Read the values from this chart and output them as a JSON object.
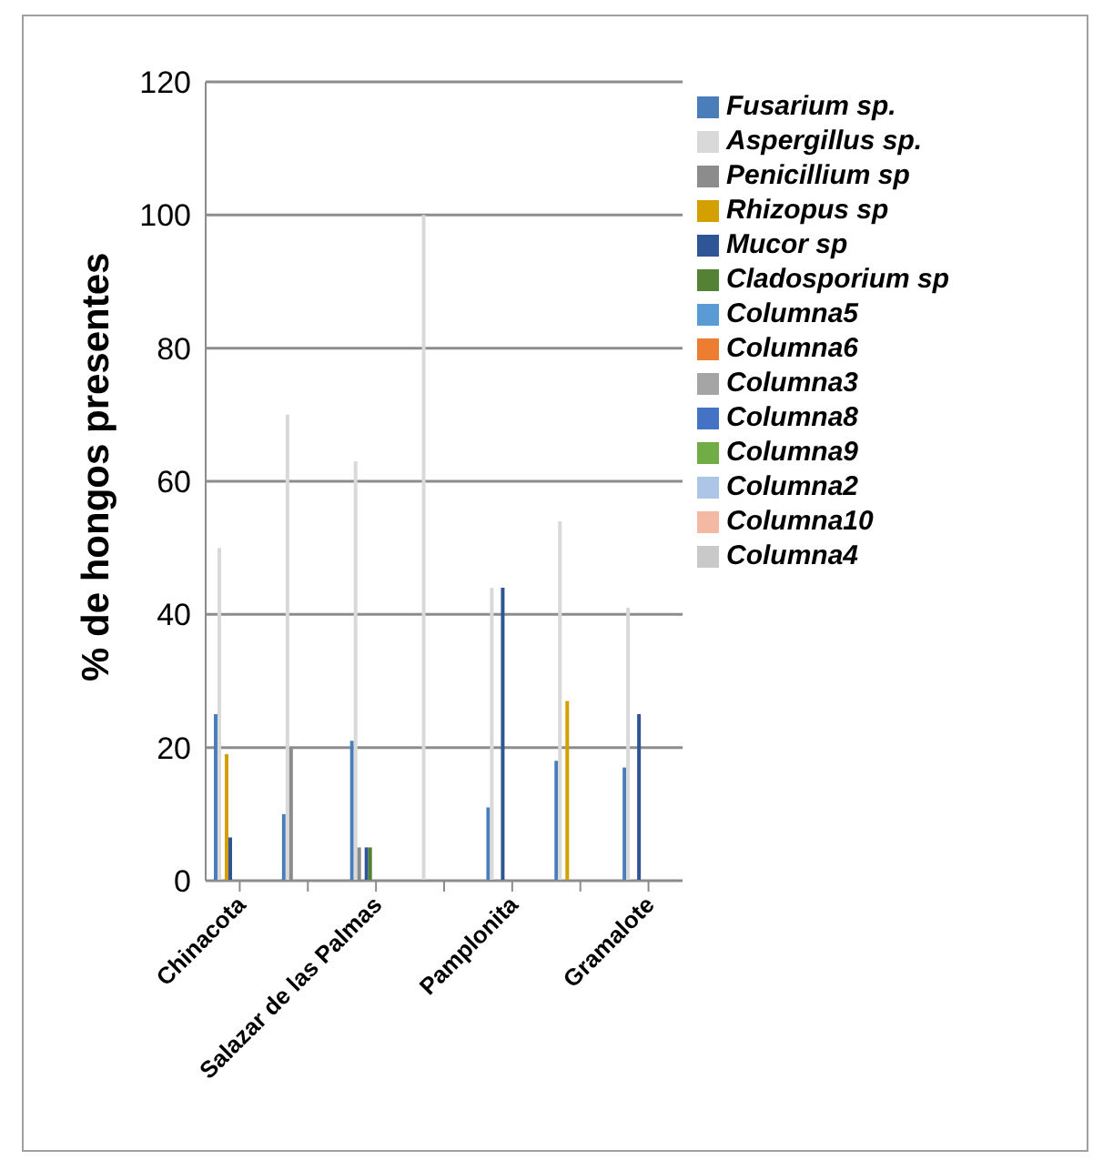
{
  "chart_data": {
    "type": "bar",
    "ylabel": "% de hongos presentes",
    "categories": [
      "Chinacota",
      null,
      "Salazar de las Palmas",
      null,
      "Pamplonita",
      null,
      "Gramalote"
    ],
    "series": [
      {
        "name": "Fusarium sp.",
        "color": "#4a7ebb",
        "values": [
          25,
          10,
          21,
          null,
          11,
          18,
          17
        ]
      },
      {
        "name": "Aspergillus sp.",
        "color": "#d9d9d9",
        "values": [
          50,
          70,
          63,
          100,
          44,
          54,
          41
        ]
      },
      {
        "name": "Penicillium sp",
        "color": "#8c8c8c",
        "values": [
          null,
          20,
          5,
          null,
          null,
          null,
          null
        ]
      },
      {
        "name": "Rhizopus sp",
        "color": "#d4a000",
        "values": [
          19,
          null,
          null,
          null,
          null,
          27,
          null
        ]
      },
      {
        "name": "Mucor sp",
        "color": "#2f5597",
        "values": [
          6.5,
          null,
          5,
          null,
          44,
          null,
          25
        ]
      },
      {
        "name": "Cladosporium sp",
        "color": "#548235",
        "values": [
          null,
          null,
          5,
          null,
          null,
          null,
          null
        ]
      },
      {
        "name": "Columna5",
        "color": "#5b9bd5",
        "values": [
          null,
          null,
          null,
          null,
          null,
          null,
          null
        ]
      },
      {
        "name": "Columna6",
        "color": "#ed7d31",
        "values": [
          null,
          null,
          null,
          null,
          null,
          null,
          null
        ]
      },
      {
        "name": "Columna3",
        "color": "#a5a5a5",
        "values": [
          null,
          null,
          null,
          null,
          null,
          null,
          null
        ]
      },
      {
        "name": "Columna8",
        "color": "#4472c4",
        "values": [
          null,
          null,
          null,
          null,
          null,
          null,
          null
        ]
      },
      {
        "name": "Columna9",
        "color": "#70ad47",
        "values": [
          null,
          null,
          null,
          null,
          null,
          null,
          null
        ]
      },
      {
        "name": "Columna2",
        "color": "#adc5e7",
        "values": [
          null,
          null,
          null,
          null,
          null,
          null,
          null
        ]
      },
      {
        "name": "Columna10",
        "color": "#f4b9a3",
        "values": [
          null,
          null,
          null,
          null,
          null,
          null,
          null
        ]
      },
      {
        "name": "Columna4",
        "color": "#c9c9c9",
        "values": [
          null,
          null,
          null,
          null,
          null,
          null,
          null
        ]
      }
    ],
    "ylim": [
      0,
      120
    ],
    "yticks": [
      0,
      20,
      40,
      60,
      80,
      100,
      120
    ],
    "grid": "y",
    "legend": "right"
  }
}
